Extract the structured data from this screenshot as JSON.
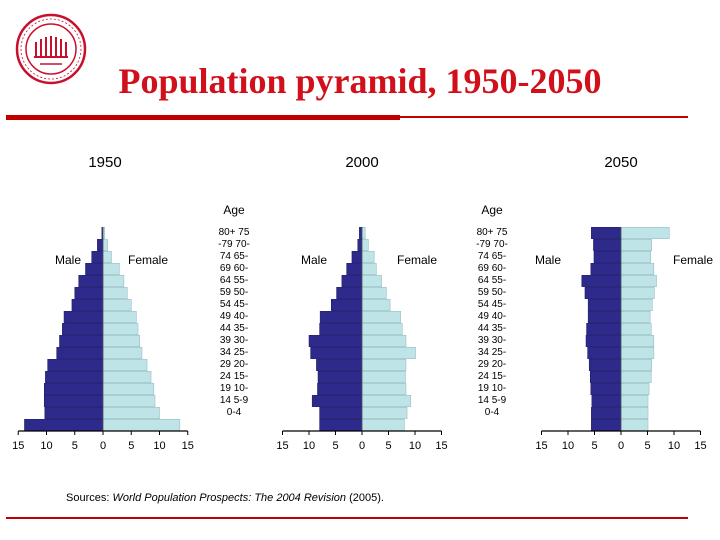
{
  "slide_title": "Population pyramid, 1950-2050",
  "logo_icon": "university-seal-icon",
  "colors": {
    "title": "#d0101b",
    "rule": "#c00000",
    "male_bar": "#2e2a8c",
    "female_bar": "#bfe4e8",
    "axis": "#000000"
  },
  "sources": {
    "prefix": "Sources: ",
    "title": "World Population Prospects: The 2004 Revision",
    "suffix": " (2005)."
  },
  "chart_data": [
    {
      "type": "bar",
      "orientation": "horizontal-pyramid",
      "title": "1950",
      "male_label": "Male",
      "female_label": "Female",
      "age_label": "",
      "ticks": [
        "15",
        "10",
        "5",
        "0",
        "5",
        "10",
        "15"
      ],
      "xlim": [
        -15,
        15
      ],
      "categories": [
        "0-4",
        "5-9",
        "10-14",
        "15-19",
        "20-24",
        "25-29",
        "30-34",
        "35-39",
        "40-44",
        "45-49",
        "50-54",
        "55-59",
        "60-64",
        "65-69",
        "70-74",
        "75-79",
        "80+"
      ],
      "series": [
        {
          "name": "Male",
          "values": [
            13.9,
            10.3,
            10.4,
            10.4,
            10.2,
            9.8,
            8.2,
            7.7,
            7.2,
            6.9,
            5.5,
            5.0,
            4.3,
            3.1,
            2.0,
            1.0,
            0.2
          ]
        },
        {
          "name": "Female",
          "values": [
            13.6,
            10.0,
            9.2,
            9.0,
            8.5,
            7.8,
            6.9,
            6.5,
            6.2,
            5.9,
            5.0,
            4.3,
            3.7,
            2.9,
            1.5,
            0.8,
            0.3
          ]
        }
      ]
    },
    {
      "type": "bar",
      "orientation": "horizontal-pyramid",
      "title": "2000",
      "male_label": "Male",
      "female_label": "Female",
      "age_label": "Age",
      "ticks": [
        "15",
        "10",
        "5",
        "0",
        "5",
        "10",
        "15"
      ],
      "xlim": [
        -15,
        15
      ],
      "categories": [
        "0-4",
        "5-9",
        "10-14",
        "15-19",
        "20-24",
        "25-29",
        "30-34",
        "35-39",
        "40-44",
        "45-49",
        "50-54",
        "55-59",
        "60-64",
        "65-69",
        "70-74",
        "75-79",
        "80+"
      ],
      "series": [
        {
          "name": "Male",
          "values": [
            8.0,
            8.0,
            9.4,
            8.4,
            8.3,
            8.6,
            9.7,
            10.0,
            8.0,
            7.9,
            5.8,
            4.8,
            3.8,
            2.9,
            1.9,
            0.8,
            0.5
          ]
        },
        {
          "name": "Female",
          "values": [
            8.0,
            8.5,
            9.2,
            8.3,
            8.2,
            8.3,
            10.1,
            8.3,
            7.6,
            7.3,
            5.3,
            4.6,
            3.7,
            2.7,
            2.3,
            1.2,
            0.6
          ]
        }
      ]
    },
    {
      "type": "bar",
      "orientation": "horizontal-pyramid",
      "title": "2050",
      "male_label": "Male",
      "female_label": "Female",
      "age_label": "Age",
      "ticks": [
        "15",
        "10",
        "5",
        "0",
        "5",
        "10",
        "15"
      ],
      "xlim": [
        -15,
        15
      ],
      "categories": [
        "0-4",
        "5-9",
        "10-14",
        "15-19",
        "20-24",
        "25-29",
        "30-34",
        "35-39",
        "40-44",
        "45-49",
        "50-54",
        "55-59",
        "60-64",
        "65-69",
        "70-74",
        "75-79",
        "80+"
      ],
      "series": [
        {
          "name": "Male",
          "values": [
            5.6,
            5.6,
            5.5,
            5.7,
            5.8,
            6.0,
            6.3,
            6.6,
            6.5,
            6.2,
            6.2,
            6.8,
            7.4,
            5.7,
            5.1,
            5.2,
            5.6
          ]
        },
        {
          "name": "Female",
          "values": [
            5.1,
            5.1,
            5.1,
            5.3,
            5.7,
            5.8,
            6.2,
            6.2,
            5.7,
            5.5,
            5.9,
            6.3,
            6.7,
            6.2,
            5.6,
            5.8,
            9.1
          ]
        }
      ]
    }
  ],
  "age_tick_labels": [
    {
      "line1": "80+",
      "line2": "75"
    },
    {
      "line1": "-79",
      "line2": "70-"
    },
    {
      "line1": "74",
      "line2": "65-"
    },
    {
      "line1": "69",
      "line2": "60-"
    },
    {
      "line1": "64",
      "line2": "55-"
    },
    {
      "line1": "59",
      "line2": "50-"
    },
    {
      "line1": "54",
      "line2": "45-"
    },
    {
      "line1": "49",
      "line2": "40-"
    },
    {
      "line1": "44",
      "line2": "35-"
    },
    {
      "line1": "39",
      "line2": "30-"
    },
    {
      "line1": "34",
      "line2": "25-"
    },
    {
      "line1": "29",
      "line2": "20-"
    },
    {
      "line1": "24",
      "line2": "15-"
    },
    {
      "line1": "19",
      "line2": "10-"
    },
    {
      "line1": "14",
      "line2": "5-9"
    },
    {
      "line1": "0-4",
      "line2": ""
    }
  ]
}
